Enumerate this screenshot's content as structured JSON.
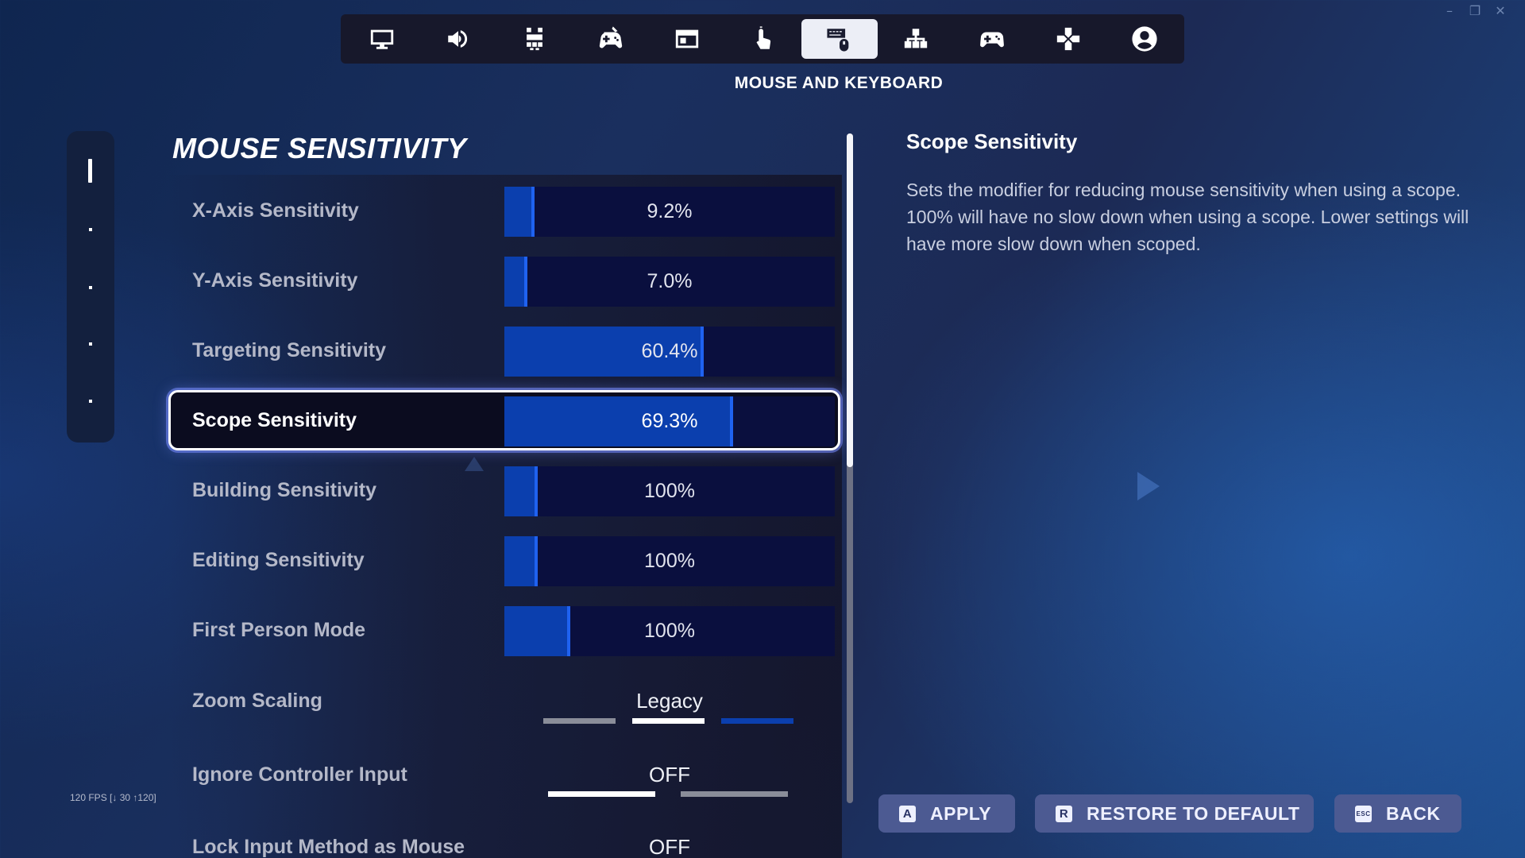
{
  "window_controls": [
    "–",
    "❐",
    "✕"
  ],
  "nav": {
    "tabs": [
      {
        "name": "tab-display",
        "icon": "monitor-icon",
        "active": false
      },
      {
        "name": "tab-audio",
        "icon": "speaker-icon",
        "active": false
      },
      {
        "name": "tab-accessibility",
        "icon": "grid-icon",
        "active": false
      },
      {
        "name": "tab-game",
        "icon": "controller-pen-icon",
        "active": false
      },
      {
        "name": "tab-ui",
        "icon": "window-icon",
        "active": false
      },
      {
        "name": "tab-touch",
        "icon": "touch-icon",
        "active": false
      },
      {
        "name": "tab-mouse-keyboard",
        "icon": "mouse-keyboard-icon",
        "active": true
      },
      {
        "name": "tab-network",
        "icon": "network-icon",
        "active": false
      },
      {
        "name": "tab-controller",
        "icon": "gamepad-icon",
        "active": false
      },
      {
        "name": "tab-controller-binds",
        "icon": "dpad-icon",
        "active": false
      },
      {
        "name": "tab-account",
        "icon": "account-icon",
        "active": false
      }
    ],
    "section_title": "MOUSE AND KEYBOARD"
  },
  "group_title": "MOUSE SENSITIVITY",
  "settings": [
    {
      "label": "X-Axis Sensitivity",
      "value": "9.2%",
      "fill": 0.092
    },
    {
      "label": "Y-Axis Sensitivity",
      "value": "7.0%",
      "fill": 0.07
    },
    {
      "label": "Targeting Sensitivity",
      "value": "60.4%",
      "fill": 0.604
    },
    {
      "label": "Scope Sensitivity",
      "value": "69.3%",
      "fill": 0.693
    },
    {
      "label": "Building Sensitivity",
      "value": "100%",
      "fill": 0.1
    },
    {
      "label": "Editing Sensitivity",
      "value": "100%",
      "fill": 0.1
    },
    {
      "label": "First Person Mode",
      "value": "100%",
      "fill": 0.2
    }
  ],
  "options": [
    {
      "label": "Zoom Scaling",
      "value": "Legacy",
      "segments": 3,
      "selected_segment": 2
    },
    {
      "label": "Ignore Controller Input",
      "value": "OFF",
      "segments": 2,
      "selected_segment": 1
    },
    {
      "label": "Lock Input Method as Mouse",
      "value": "OFF"
    }
  ],
  "description": {
    "title": "Scope Sensitivity",
    "body": "Sets the modifier for reducing mouse sensitivity when using a scope. 100% will have no slow down when using a scope. Lower settings will have more slow down when scoped."
  },
  "fps": "120 FPS [↓ 30 ↑120]",
  "buttons": {
    "apply": {
      "key": "A",
      "label": "APPLY"
    },
    "restore": {
      "key": "R",
      "label": "RESTORE TO DEFAULT"
    },
    "back": {
      "key": "ESC",
      "label": "BACK"
    }
  },
  "colors": {
    "slider_fill": "#0b3fae",
    "slider_track": "#0a0f3e",
    "slider_edge": "#1f62f0",
    "button_bg": "#4c5a92"
  }
}
